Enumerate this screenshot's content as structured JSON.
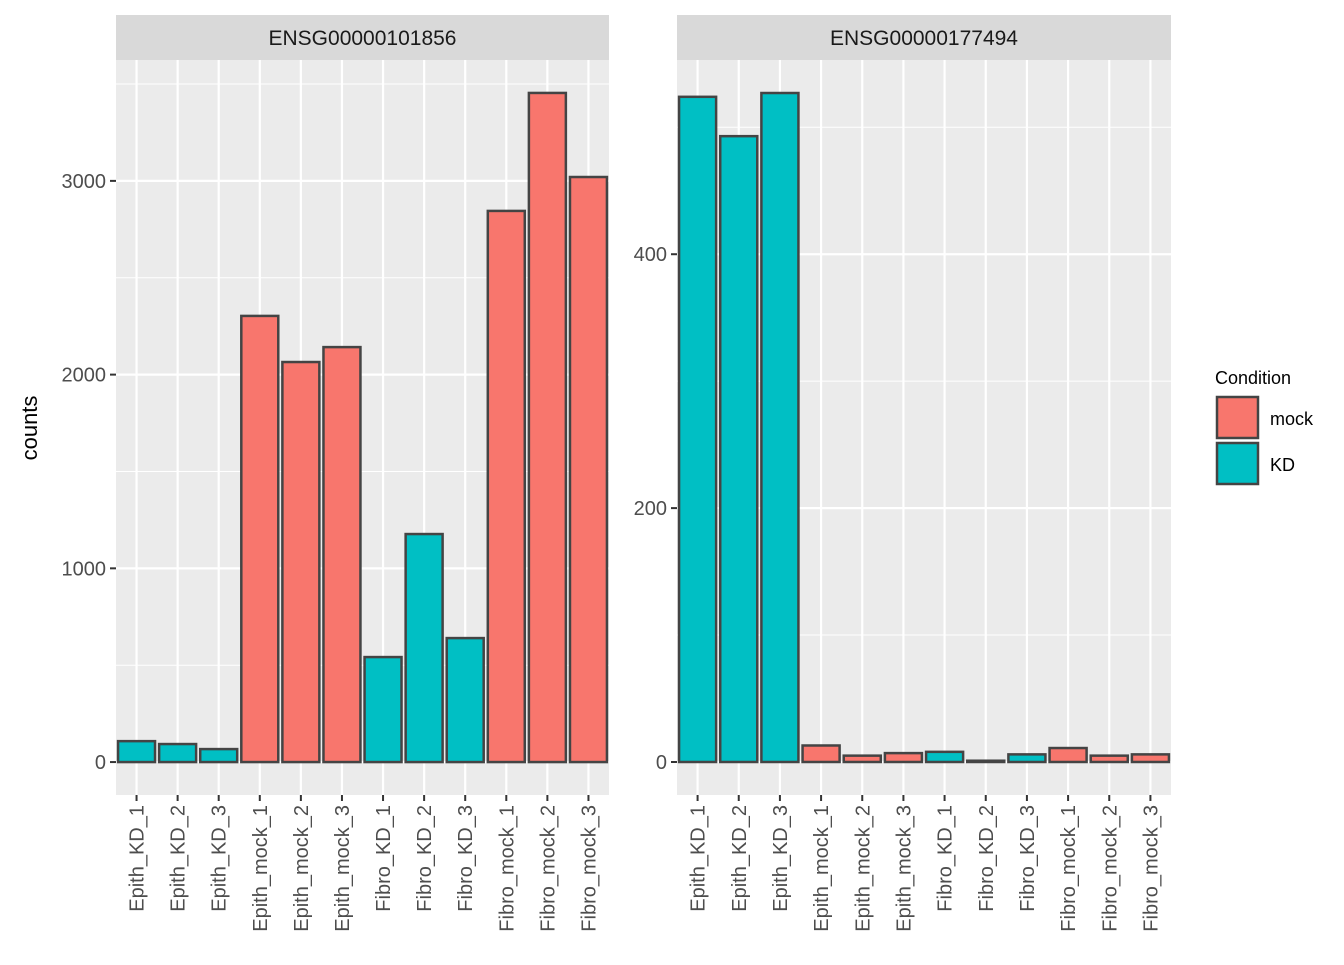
{
  "chart_data": [
    {
      "type": "bar",
      "title": "ENSG00000101856",
      "xlabel": "",
      "ylabel": "counts",
      "categories": [
        "Epith_KD_1",
        "Epith_KD_2",
        "Epith_KD_3",
        "Epith_mock_1",
        "Epith_mock_2",
        "Epith_mock_3",
        "Fibro_KD_1",
        "Fibro_KD_2",
        "Fibro_KD_3",
        "Fibro_mock_1",
        "Fibro_mock_2",
        "Fibro_mock_3"
      ],
      "values": [
        108,
        93,
        67,
        2303,
        2065,
        2142,
        542,
        1177,
        640,
        2845,
        3454,
        3020
      ],
      "condition": [
        "KD",
        "KD",
        "KD",
        "mock",
        "mock",
        "mock",
        "KD",
        "KD",
        "KD",
        "mock",
        "mock",
        "mock"
      ],
      "yticks": [
        0,
        1000,
        2000,
        3000
      ],
      "ylim": [
        -170,
        3624
      ],
      "grid": true
    },
    {
      "type": "bar",
      "title": "ENSG00000177494",
      "xlabel": "",
      "ylabel": "counts",
      "categories": [
        "Epith_KD_1",
        "Epith_KD_2",
        "Epith_KD_3",
        "Epith_mock_1",
        "Epith_mock_2",
        "Epith_mock_3",
        "Fibro_KD_1",
        "Fibro_KD_2",
        "Fibro_KD_3",
        "Fibro_mock_1",
        "Fibro_mock_2",
        "Fibro_mock_3"
      ],
      "values": [
        524,
        493,
        527,
        13,
        5,
        7,
        8,
        1,
        6,
        11,
        5,
        6
      ],
      "condition": [
        "KD",
        "KD",
        "KD",
        "mock",
        "mock",
        "mock",
        "KD",
        "KD",
        "KD",
        "mock",
        "mock",
        "mock"
      ],
      "yticks": [
        0,
        200,
        400
      ],
      "ylim": [
        -26,
        553
      ],
      "grid": true
    }
  ],
  "ylabel": "counts",
  "legend": {
    "title": "Condition",
    "placement": "right",
    "items": [
      {
        "label": "mock",
        "color": "#F8766D"
      },
      {
        "label": "KD",
        "color": "#00BFC4"
      }
    ]
  },
  "colors": {
    "mock": "#F8766D",
    "KD": "#00BFC4",
    "panel": "#EBEBEB",
    "strip": "#D9D9D9",
    "outline": "#444444"
  }
}
